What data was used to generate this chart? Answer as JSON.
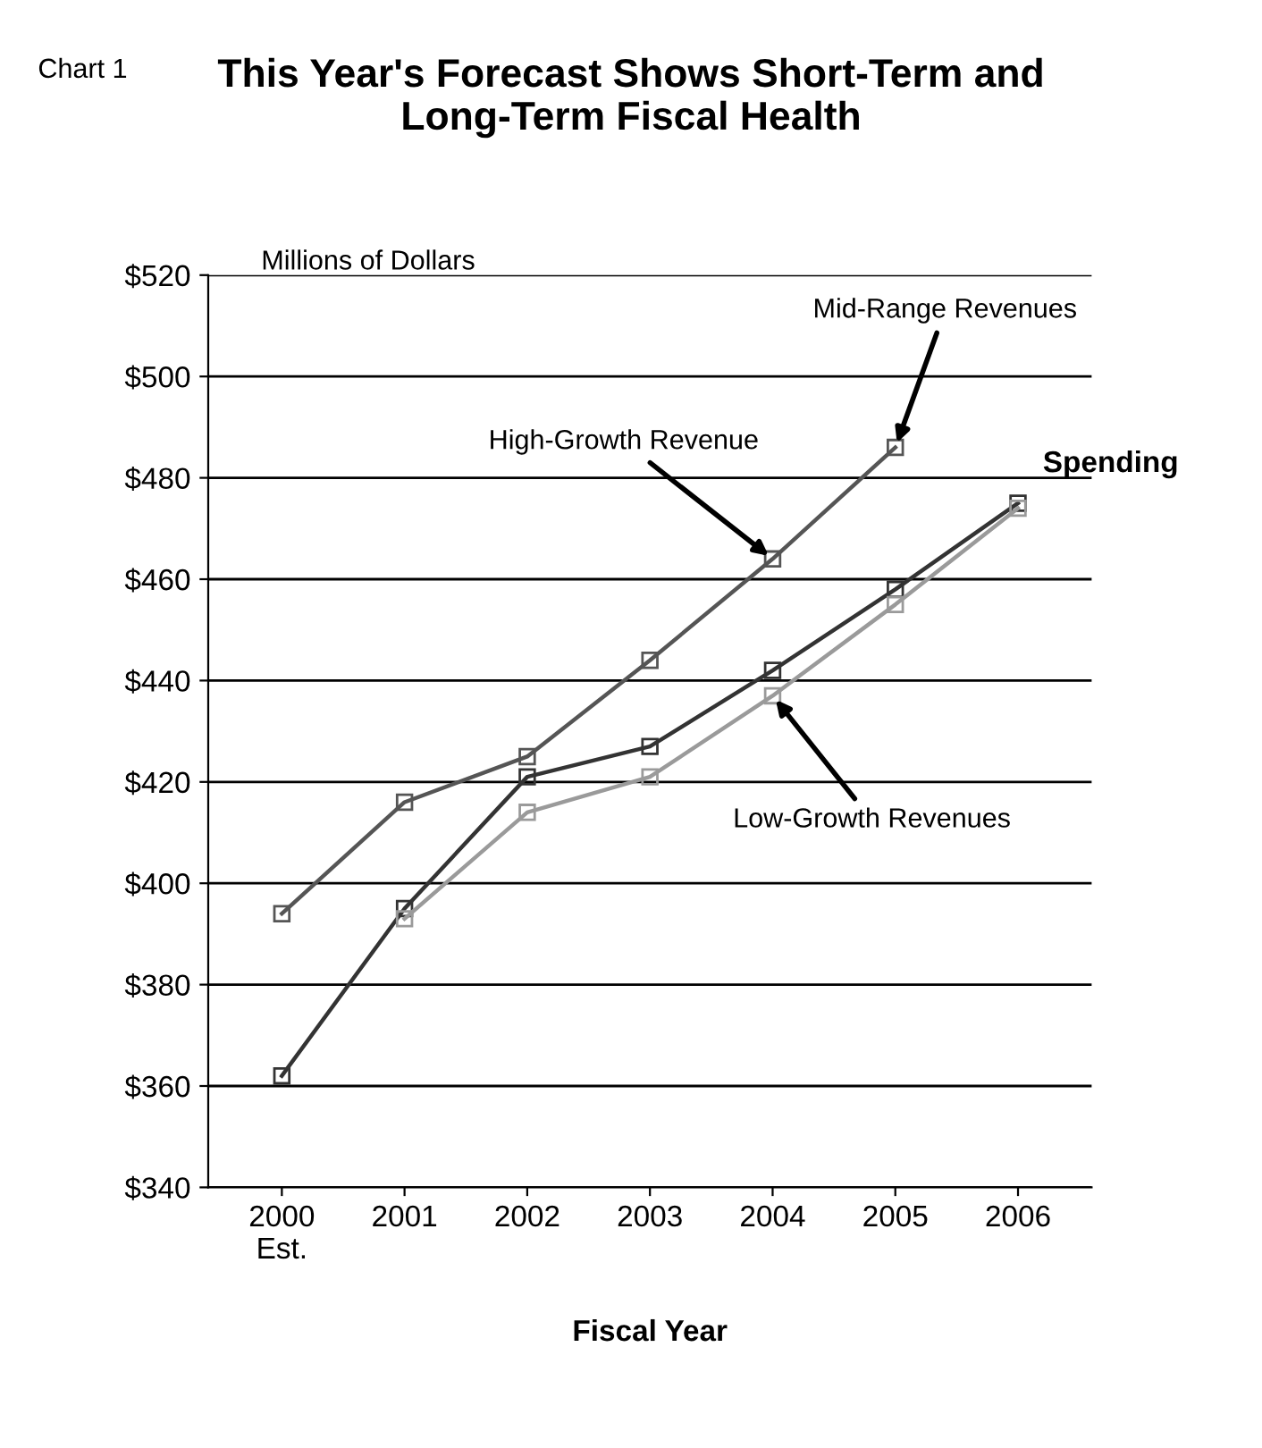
{
  "chart_data": {
    "type": "line",
    "title": "This Year's Forecast Shows Short-Term and\nLong-Term Fiscal Health",
    "xlabel": "Fiscal Year",
    "ylabel": "Millions of Dollars",
    "categories": [
      "2000\nEst.",
      "2001",
      "2002",
      "2003",
      "2004",
      "2005",
      "2006"
    ],
    "series": [
      {
        "color": "#555555",
        "values": [
          394,
          416,
          425,
          444,
          464,
          486,
          null
        ]
      },
      {
        "color": "#333333",
        "values": [
          362,
          395,
          421,
          427,
          442,
          458,
          475
        ]
      },
      {
        "color": "#9a9a9a",
        "values": [
          null,
          393,
          414,
          421,
          437,
          455,
          474
        ]
      }
    ],
    "ylim": [
      340,
      520
    ],
    "yticks": [
      {
        "value": 340,
        "label": "$340"
      },
      {
        "value": 360,
        "label": "$360"
      },
      {
        "value": 380,
        "label": "$380"
      },
      {
        "value": 400,
        "label": "$400"
      },
      {
        "value": 420,
        "label": "$420"
      },
      {
        "value": 440,
        "label": "$440"
      },
      {
        "value": 460,
        "label": "$460"
      },
      {
        "value": 480,
        "label": "$480"
      },
      {
        "value": 500,
        "label": "$500"
      },
      {
        "value": 520,
        "label": "$520"
      }
    ],
    "grid": "y",
    "marker": "square",
    "line_style": "solid",
    "annotations": [
      "Chart 1",
      {
        "text": "Mid-Range Revenues",
        "x": "2005",
        "y": 486
      },
      {
        "text": "High-Growth Revenue",
        "x": "2004",
        "y": 464
      },
      {
        "text": "Spending",
        "x": "2006",
        "y": 475
      },
      {
        "text": "Low-Growth Revenues",
        "x": "2004",
        "y": 437
      }
    ]
  }
}
